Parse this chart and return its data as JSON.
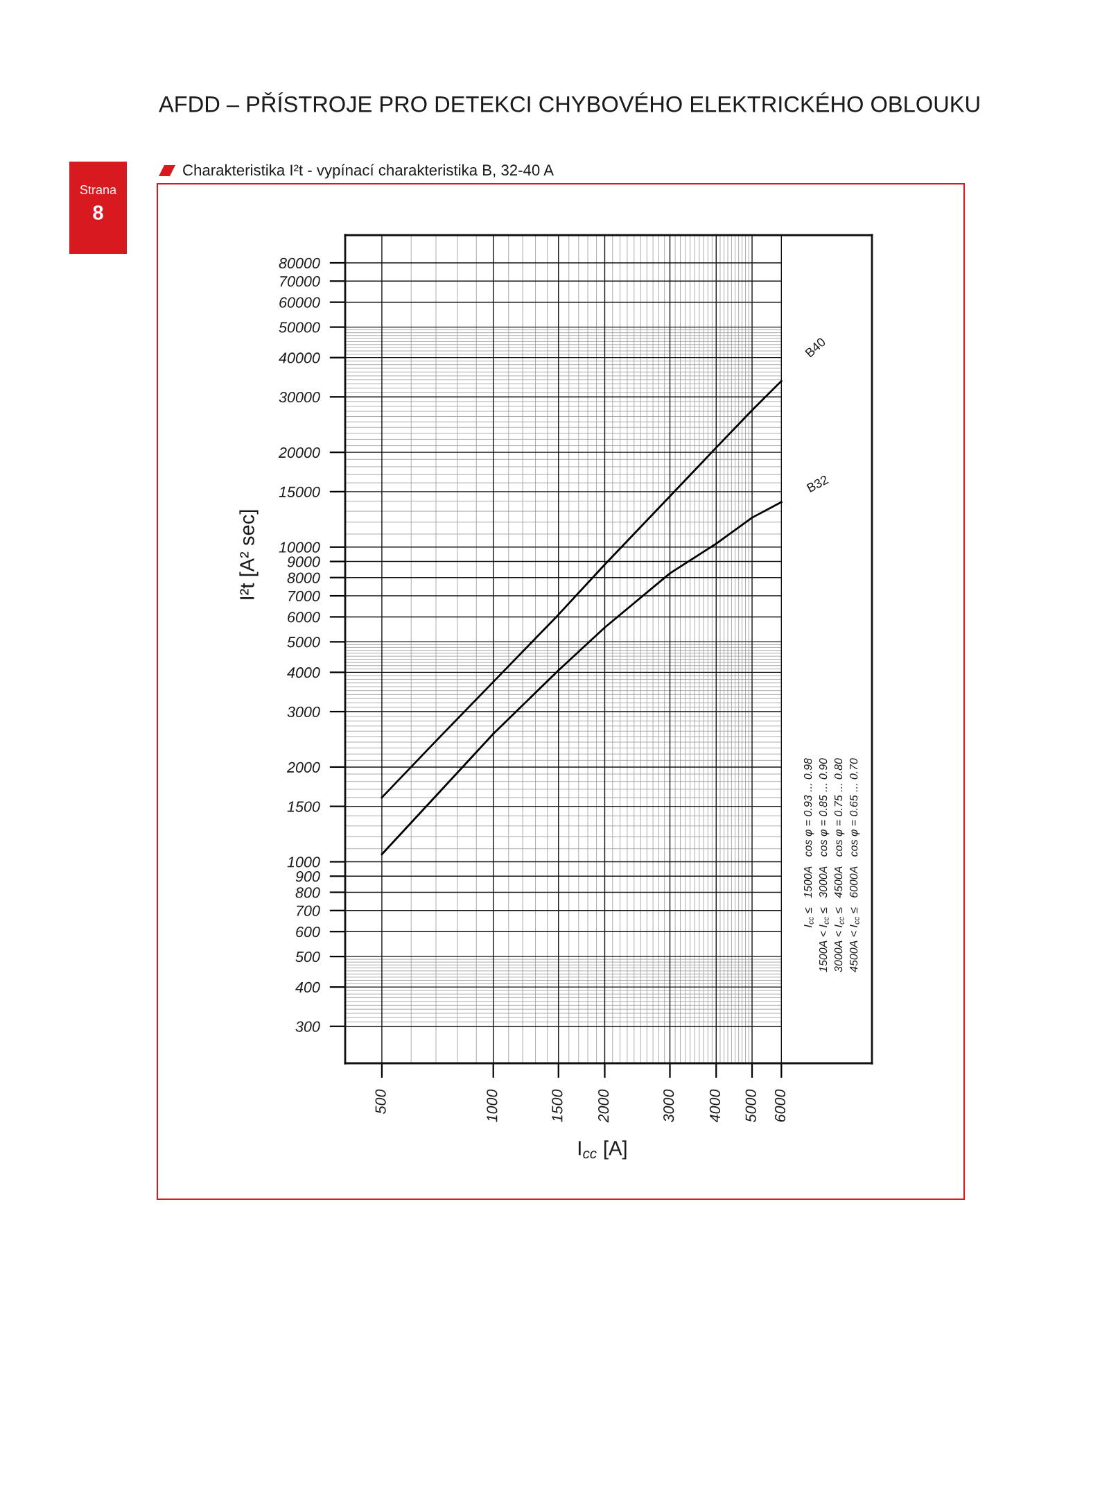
{
  "chart_data": {
    "type": "line",
    "title": "AFDD – PŘÍSTROJE PRO DETEKCI CHYBOVÉHO ELEKTRICKÉHO OBLOUKU",
    "subtitle": "Charakteristika I²t - vypínací charakteristika B, 32-40 A",
    "xlabel": "I$_{cc}$ [A]",
    "ylabel": "I²t [A² sec]",
    "x": [
      500,
      700,
      1000,
      1500,
      2000,
      3000,
      4000,
      5000,
      6000
    ],
    "series": [
      {
        "name": "B40",
        "color": "#000000",
        "values": [
          1600,
          2420,
          3730,
          6100,
          8800,
          14500,
          20700,
          27200,
          33700
        ]
      },
      {
        "name": "B32",
        "color": "#000000",
        "values": [
          1056,
          1620,
          2550,
          4060,
          5550,
          8250,
          10250,
          12400,
          13900
        ]
      }
    ],
    "log": "xy",
    "xlim": [
      398,
      10540
    ],
    "ylim": [
      229,
      98000
    ],
    "xticks": [
      500,
      1000,
      1500,
      2000,
      3000,
      4000,
      5000,
      6000
    ],
    "yticks": [
      300,
      400,
      500,
      600,
      700,
      800,
      900,
      1000,
      1500,
      2000,
      3000,
      4000,
      5000,
      6000,
      7000,
      8000,
      9000,
      10000,
      15000,
      20000,
      30000,
      40000,
      50000,
      60000,
      70000,
      80000
    ],
    "grid": true,
    "line_style": "solid",
    "marker": "none",
    "annotations": [
      "Strana",
      "8",
      "I$_{cc}$ ≤   1500A   cos φ = 0.93 ... 0.98",
      "1500A < I$_{cc}$ ≤   3000A   cos φ = 0.85 ... 0.90",
      "3000A < I$_{cc}$ ≤   4500A   cos φ = 0.75 ... 0.80",
      "4500A < I$_{cc}$ ≤   6000A   cos φ = 0.65 ... 0.70"
    ]
  }
}
